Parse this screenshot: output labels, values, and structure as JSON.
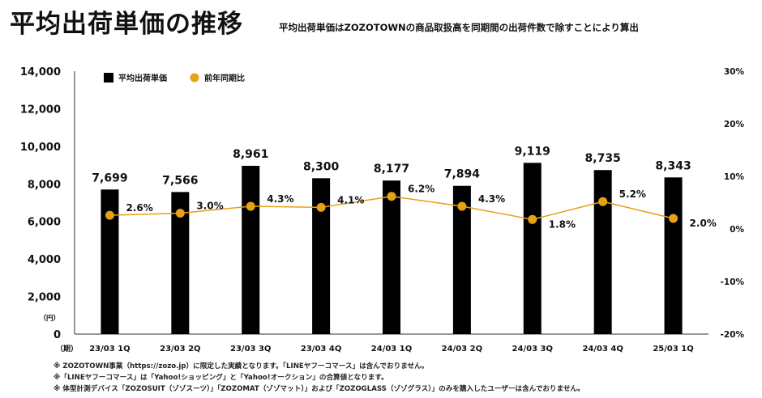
{
  "title": "平均出荷単価の推移",
  "subtitle": "平均出荷単価はZOZOTOWNの商品取扱高を同期間の出荷件数で除すことにより算出",
  "notes": [
    "※ ZOZOTOWN事業（https://zozo.jp）に限定した実績となります。「LINEヤフーコマース」は含んでおりません。",
    "※「LINEヤフーコマース」は「Yahoo!ショッピング」と「Yahoo!オークション」の合算値となります。",
    "※ 体型計測デバイス「ZOZOSUIT（ゾゾスーツ）」「ZOZOMAT（ゾゾマット）」および「ZOZOGLASS（ゾゾグラス）」のみを購入したユーザーは含んでおりません。"
  ],
  "colors": {
    "bar": "#000000",
    "line": "#e6a117",
    "text": "#111111"
  },
  "chart_data": {
    "type": "bar+line",
    "categories": [
      "23/03 1Q",
      "23/03 2Q",
      "23/03 3Q",
      "23/03 4Q",
      "24/03 1Q",
      "24/03 2Q",
      "24/03 3Q",
      "24/03 4Q",
      "25/03 1Q"
    ],
    "series": [
      {
        "name": "平均出荷単価",
        "type": "bar",
        "axis": "left",
        "values": [
          7699,
          7566,
          8961,
          8300,
          8177,
          7894,
          9119,
          8735,
          8343
        ],
        "labels": [
          "7,699",
          "7,566",
          "8,961",
          "8,300",
          "8,177",
          "7,894",
          "9,119",
          "8,735",
          "8,343"
        ]
      },
      {
        "name": "前年同期比",
        "type": "line",
        "axis": "right",
        "values": [
          2.6,
          3.0,
          4.3,
          4.1,
          6.2,
          4.3,
          1.8,
          5.2,
          2.0
        ],
        "labels": [
          "2.6%",
          "3.0%",
          "4.3%",
          "4.1%",
          "6.2%",
          "4.3%",
          "1.8%",
          "5.2%",
          "2.0%"
        ]
      }
    ],
    "y_left": {
      "ylim": [
        0,
        14000
      ],
      "ticks": [
        "0",
        "2,000",
        "4,000",
        "6,000",
        "8,000",
        "10,000",
        "12,000",
        "14,000"
      ],
      "unit": "（円）"
    },
    "y_right": {
      "ylim": [
        -20,
        30
      ],
      "ticks": [
        "-20%",
        "-10%",
        "0%",
        "10%",
        "20%",
        "30%"
      ]
    },
    "x_unit": "（期）",
    "legend_position": "top-left",
    "grid": false
  }
}
